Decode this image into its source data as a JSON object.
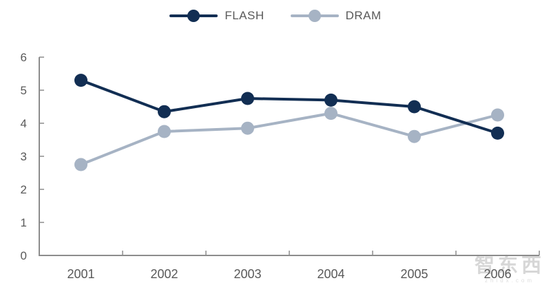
{
  "legend": {
    "items": [
      {
        "label": "FLASH"
      },
      {
        "label": "DRAM"
      }
    ]
  },
  "chart_data": {
    "type": "line",
    "categories": [
      "2001",
      "2002",
      "2003",
      "2004",
      "2005",
      "2006"
    ],
    "series": [
      {
        "name": "FLASH",
        "color": "#122e53",
        "values": [
          5.3,
          4.35,
          4.75,
          4.7,
          4.5,
          3.7
        ]
      },
      {
        "name": "DRAM",
        "color": "#a6b3c4",
        "values": [
          2.75,
          3.75,
          3.85,
          4.3,
          3.6,
          4.25
        ]
      }
    ],
    "title": "",
    "xlabel": "",
    "ylabel": "",
    "ylim": [
      0,
      6
    ],
    "yticks": [
      "0",
      "1",
      "2",
      "3",
      "4",
      "5",
      "6"
    ],
    "grid": false,
    "legend_position": "top-center",
    "axis_color": "#8c8c8c",
    "tick_label_color": "#595959",
    "marker_shape": "circle"
  },
  "watermark": {
    "text": "智东西",
    "subtext": "zhidx.com"
  }
}
